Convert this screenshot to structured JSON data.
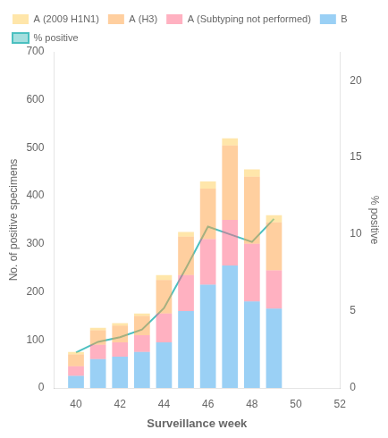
{
  "chart_data": {
    "type": "bar",
    "stacked": true,
    "x": [
      40,
      41,
      42,
      43,
      44,
      45,
      46,
      47,
      48,
      49
    ],
    "xlabel": "Surveillance week",
    "ylabel": "No. of positive specimens",
    "y2label": "% positive",
    "series": [
      {
        "name": "A (2009 H1N1)",
        "values": [
          5,
          5,
          5,
          5,
          10,
          10,
          15,
          15,
          15,
          15
        ]
      },
      {
        "name": "A (H3)",
        "values": [
          25,
          30,
          35,
          40,
          70,
          80,
          105,
          155,
          140,
          100
        ]
      },
      {
        "name": "A (Subtyping not performed)",
        "values": [
          20,
          30,
          30,
          35,
          60,
          75,
          95,
          95,
          120,
          80
        ]
      },
      {
        "name": "B",
        "values": [
          25,
          60,
          65,
          75,
          95,
          160,
          215,
          255,
          180,
          165
        ]
      },
      {
        "name": "% positive",
        "type": "line",
        "axis": "y2",
        "marker": "none",
        "values": [
          2.3,
          3.0,
          3.3,
          3.8,
          5.2,
          7.8,
          10.5,
          10.0,
          9.5,
          11.0
        ]
      }
    ],
    "xlim": [
      39,
      52
    ],
    "xticks": [
      40,
      42,
      44,
      46,
      48,
      50,
      52
    ],
    "ylim": [
      0,
      700
    ],
    "yticks": [
      0,
      100,
      200,
      300,
      400,
      500,
      600,
      700
    ],
    "y2lim": [
      0,
      21.875
    ],
    "y2ticks": [
      0,
      5,
      10,
      15,
      20
    ],
    "grid": false,
    "legend": "upper left"
  }
}
